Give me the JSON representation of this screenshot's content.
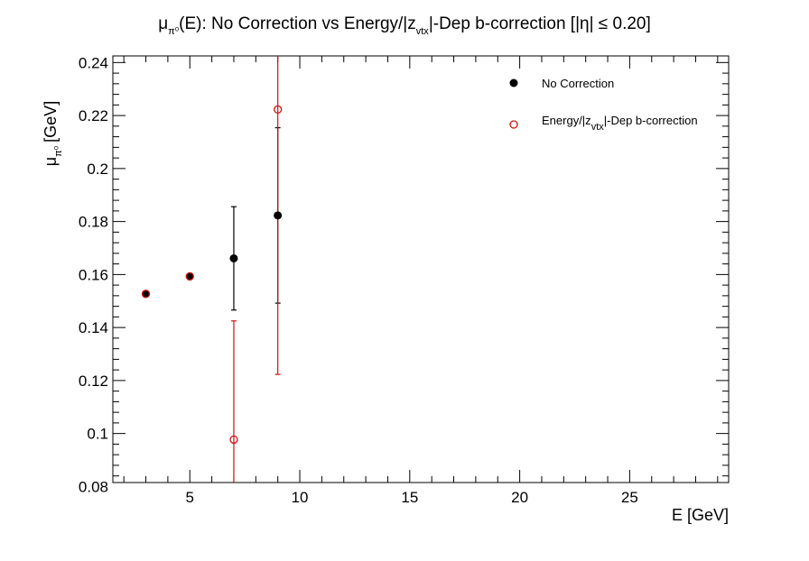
{
  "chart_data": {
    "type": "scatter",
    "title": {
      "mu": "μ",
      "mu_sub": "π⁰",
      "before_sub": "(E): No Correction vs Energy/|z",
      "sub": "vtx",
      "after_sub": "|-Dep b-correction   [|η| ≤ 0.20]"
    },
    "xlabel": "E [GeV]",
    "ylabel": {
      "main": "μ",
      "sub": "π⁰",
      "rest": "[GeV]"
    },
    "xlim": [
      1.5,
      29.5
    ],
    "ylim": [
      0.0815,
      0.2425
    ],
    "x_ticks": [
      5,
      10,
      15,
      20,
      25
    ],
    "y_ticks": [
      0.08,
      0.1,
      0.12,
      0.14,
      0.16,
      0.18,
      0.2,
      0.22,
      0.24
    ],
    "x_tick_labels": [
      "5",
      "10",
      "15",
      "20",
      "25"
    ],
    "y_tick_labels": [
      "0.08",
      "0.1",
      "0.12",
      "0.14",
      "0.16",
      "0.18",
      "0.2",
      "0.22",
      "0.24"
    ],
    "legend_position": "top-right",
    "series": [
      {
        "name": "No Correction",
        "legend_label": {
          "main": "No Correction"
        },
        "color": "#000000",
        "marker": "filled-circle",
        "points": [
          {
            "x": 3,
            "y": 0.1527,
            "err_low": 0.0003,
            "err_high": 0.0003
          },
          {
            "x": 5,
            "y": 0.1593,
            "err_low": 0.0003,
            "err_high": 0.0003
          },
          {
            "x": 7,
            "y": 0.1661,
            "err_low": 0.0195,
            "err_high": 0.0195
          },
          {
            "x": 9,
            "y": 0.1823,
            "err_low": 0.0331,
            "err_high": 0.0331
          }
        ]
      },
      {
        "name": "Energy/|z vtx|-Dep b-correction",
        "legend_label": {
          "before_sub": "Energy/|z",
          "sub": "vtx",
          "after_sub": "|-Dep b-correction"
        },
        "color": "#cc1111",
        "marker": "open-circle",
        "points": [
          {
            "x": 3,
            "y": 0.1527,
            "err_low": 0.0003,
            "err_high": 0.0003
          },
          {
            "x": 5,
            "y": 0.1593,
            "err_low": 0.0003,
            "err_high": 0.0003
          },
          {
            "x": 7,
            "y": 0.0977,
            "err_low": 0.0448,
            "err_high": 0.0448
          },
          {
            "x": 9,
            "y": 0.2223,
            "err_low": 0.1,
            "err_high": 0.1
          }
        ]
      }
    ]
  }
}
